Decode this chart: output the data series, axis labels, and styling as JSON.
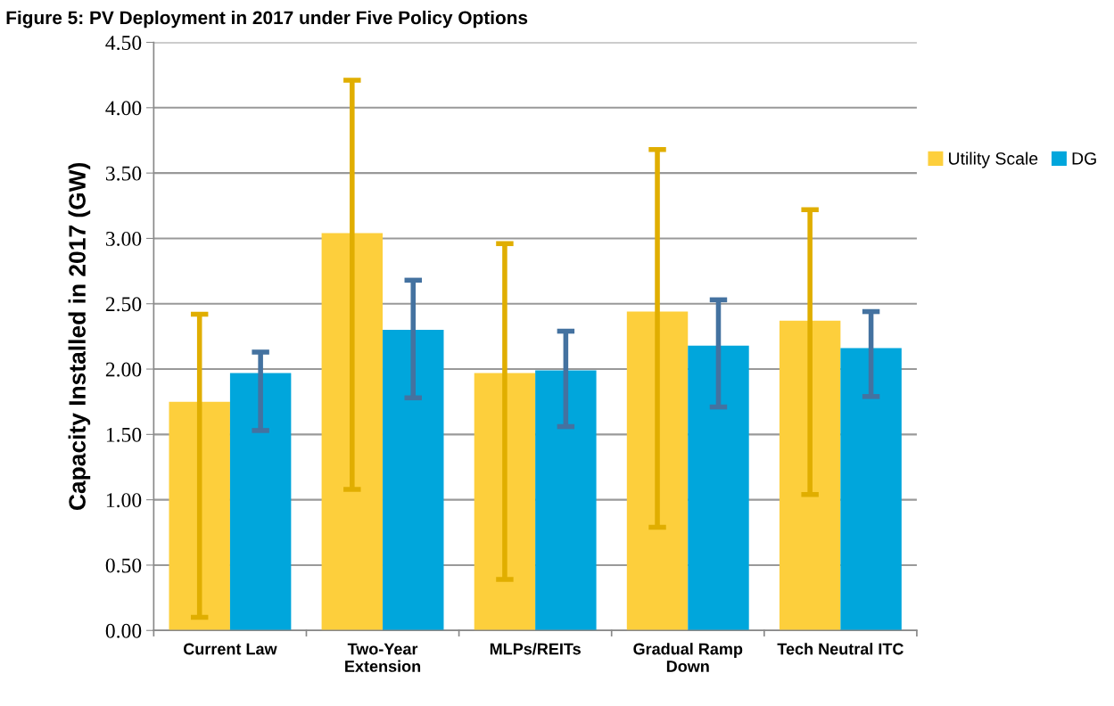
{
  "chart_data": {
    "type": "bar",
    "title": "Figure 5: PV Deployment in 2017 under Five Policy Options",
    "ylabel": "Capacity Installed in 2017 (GW)",
    "categories": [
      "Current Law",
      "Two-Year\nExtension",
      "MLPs/REITs",
      "Gradual Ramp\nDown",
      "Tech Neutral ITC"
    ],
    "series": [
      {
        "name": "Utility Scale",
        "color": "#fdcf3c",
        "values": [
          1.75,
          3.04,
          1.97,
          2.44,
          2.37
        ],
        "errors": [
          [
            0.1,
            2.42
          ],
          [
            1.08,
            4.21
          ],
          [
            0.39,
            2.96
          ],
          [
            0.79,
            3.68
          ],
          [
            1.04,
            3.22
          ]
        ]
      },
      {
        "name": "DG",
        "color": "#00a6dc",
        "values": [
          1.97,
          2.3,
          1.99,
          2.18,
          2.16
        ],
        "errors": [
          [
            1.53,
            2.13
          ],
          [
            1.78,
            2.68
          ],
          [
            1.56,
            2.29
          ],
          [
            1.71,
            2.53
          ],
          [
            1.79,
            2.44
          ]
        ]
      }
    ],
    "ylim": [
      0,
      4.5
    ],
    "yticks": [
      {
        "value": 0,
        "label": "0.00"
      },
      {
        "value": 0.5,
        "label": "0.50"
      },
      {
        "value": 1,
        "label": "1.00"
      },
      {
        "value": 1.5,
        "label": "1.50"
      },
      {
        "value": 2,
        "label": "2.00"
      },
      {
        "value": 2.5,
        "label": "2.50"
      },
      {
        "value": 3,
        "label": "3.00"
      },
      {
        "value": 3.5,
        "label": "3.50"
      },
      {
        "value": 4,
        "label": "4.00"
      },
      {
        "value": 4.5,
        "label": "4.50"
      }
    ],
    "grid": "y",
    "legend": "right"
  }
}
